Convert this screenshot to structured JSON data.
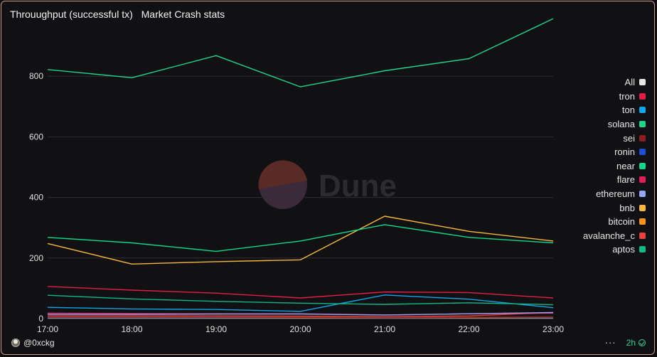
{
  "header": {
    "title": "Throuughput (successful tx)",
    "subtitle": "Market Crash stats"
  },
  "watermark": "Dune",
  "footer": {
    "author": "@0xckg",
    "menu_glyph": "···",
    "refresh_label": "2h"
  },
  "legend": [
    {
      "name": "All",
      "color": "#e6e6e6"
    },
    {
      "name": "tron",
      "color": "#e11d48"
    },
    {
      "name": "ton",
      "color": "#0ea5e9"
    },
    {
      "name": "solana",
      "color": "#22d38c"
    },
    {
      "name": "sei",
      "color": "#8b1e1e"
    },
    {
      "name": "ronin",
      "color": "#1d4ed8"
    },
    {
      "name": "near",
      "color": "#10d98a"
    },
    {
      "name": "flare",
      "color": "#e11d5a"
    },
    {
      "name": "ethereum",
      "color": "#93a8f0"
    },
    {
      "name": "bnb",
      "color": "#f5b642"
    },
    {
      "name": "bitcoin",
      "color": "#f7931a"
    },
    {
      "name": "avalanche_c",
      "color": "#e84142"
    },
    {
      "name": "aptos",
      "color": "#10b981"
    }
  ],
  "chart_data": {
    "type": "line",
    "x": [
      "17:00",
      "18:00",
      "19:00",
      "20:00",
      "21:00",
      "22:00",
      "23:00"
    ],
    "ylim": [
      0,
      1000
    ],
    "yticks": [
      0,
      200,
      400,
      600,
      800
    ],
    "grid": true,
    "legend_position": "right",
    "series": [
      {
        "name": "solana",
        "color": "#22d38c",
        "values": [
          822,
          795,
          868,
          765,
          818,
          858,
          990
        ]
      },
      {
        "name": "near",
        "color": "#10d98a",
        "values": [
          268,
          250,
          222,
          256,
          310,
          268,
          250
        ]
      },
      {
        "name": "bnb",
        "color": "#f5b642",
        "values": [
          248,
          180,
          188,
          194,
          338,
          288,
          256
        ]
      },
      {
        "name": "tron",
        "color": "#e11d48",
        "values": [
          106,
          94,
          84,
          68,
          88,
          86,
          68
        ]
      },
      {
        "name": "aptos",
        "color": "#10b981",
        "values": [
          77,
          65,
          57,
          51,
          47,
          52,
          46
        ]
      },
      {
        "name": "ton",
        "color": "#0ea5e9",
        "values": [
          37,
          32,
          30,
          24,
          78,
          64,
          36
        ]
      },
      {
        "name": "ethereum",
        "color": "#93a8f0",
        "values": [
          14,
          14,
          15,
          15,
          12,
          16,
          20
        ]
      },
      {
        "name": "flare",
        "color": "#e11d5a",
        "values": [
          18,
          17,
          16,
          16,
          12,
          16,
          18
        ]
      },
      {
        "name": "avalanche_c",
        "color": "#e84142",
        "values": [
          9,
          9,
          9,
          8,
          6,
          9,
          20
        ]
      },
      {
        "name": "sei",
        "color": "#8b1e1e",
        "values": [
          6,
          6,
          6,
          5,
          4,
          5,
          6
        ]
      },
      {
        "name": "ronin",
        "color": "#1d4ed8",
        "values": [
          4,
          4,
          4,
          4,
          3,
          4,
          4
        ]
      },
      {
        "name": "bitcoin",
        "color": "#f7931a",
        "values": [
          2,
          2,
          2,
          2,
          2,
          2,
          2
        ]
      }
    ]
  }
}
